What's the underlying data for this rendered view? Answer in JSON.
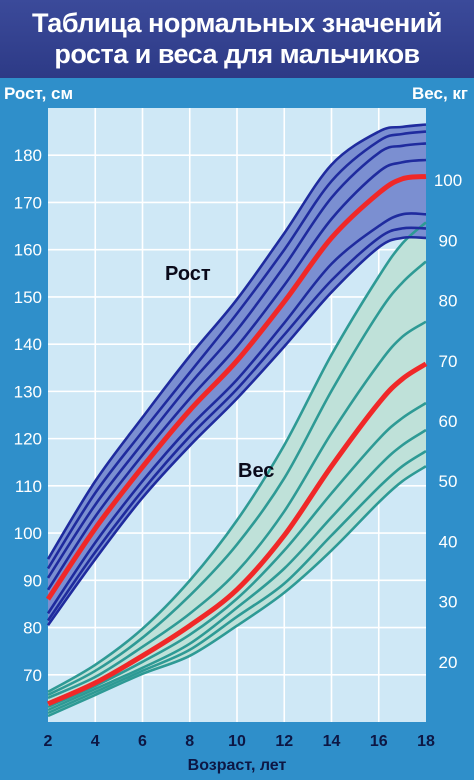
{
  "header": {
    "title_line1": "Таблица нормальных значений",
    "title_line2": "роста и веса для мальчиков"
  },
  "colors": {
    "background": "#2f8fca",
    "plot_area": "#cfe8f6",
    "header": "#323f8e",
    "height_band": "#7b8fd1",
    "height_lines": "#1f2b9e",
    "weight_band": "#bfe1d9",
    "weight_lines": "#2e9a95",
    "median": "#f02828"
  },
  "chart_data": {
    "type": "line",
    "title": "Таблица нормальных значений роста и веса для мальчиков",
    "xlabel": "Возраст, лет",
    "ylabel_left": "Рост, см",
    "ylabel_right": "Вес, кг",
    "xlim": [
      2,
      18
    ],
    "x_ticks": [
      2,
      4,
      6,
      8,
      10,
      12,
      14,
      16,
      18
    ],
    "y_left_ticks": [
      70,
      80,
      90,
      100,
      110,
      120,
      130,
      140,
      150,
      160,
      170,
      180
    ],
    "y_left_lim": [
      60,
      190
    ],
    "y_right_ticks": [
      20,
      30,
      40,
      50,
      60,
      70,
      80,
      90,
      100
    ],
    "y_right_lim": [
      10,
      112
    ],
    "grid": true,
    "x": [
      2,
      4,
      6,
      8,
      10,
      12,
      14,
      16,
      17,
      18
    ],
    "height_series": [
      {
        "values": [
          80.5,
          94.5,
          107.5,
          118.5,
          128.5,
          139.5,
          151.0,
          160.5,
          162.5,
          162.5
        ]
      },
      {
        "values": [
          81.5,
          96.0,
          109.0,
          120.5,
          130.5,
          142.0,
          153.5,
          162.5,
          164.5,
          164.5
        ]
      },
      {
        "values": [
          83.0,
          98.0,
          111.0,
          122.5,
          132.5,
          144.5,
          157.0,
          165.0,
          167.5,
          167.5
        ]
      },
      {
        "values": [
          86.0,
          101.0,
          114.0,
          126.0,
          136.5,
          149.0,
          162.5,
          172.0,
          175.0,
          175.5
        ],
        "median": true
      },
      {
        "values": [
          88.0,
          103.5,
          116.5,
          128.5,
          139.5,
          152.5,
          166.5,
          176.5,
          178.5,
          179.0
        ]
      },
      {
        "values": [
          90.5,
          106.0,
          119.0,
          131.5,
          143.0,
          156.5,
          171.0,
          180.5,
          182.0,
          182.5
        ]
      },
      {
        "values": [
          92.5,
          108.5,
          121.5,
          134.0,
          146.5,
          160.0,
          174.5,
          183.0,
          184.5,
          185.0
        ]
      },
      {
        "values": [
          94.5,
          111.0,
          124.5,
          137.5,
          149.5,
          163.5,
          178.0,
          185.0,
          186.0,
          186.5
        ]
      }
    ],
    "weight_series": [
      {
        "values": [
          11.0,
          14.5,
          18.0,
          21.0,
          26.0,
          31.5,
          38.5,
          46.5,
          50.0,
          52.5
        ]
      },
      {
        "values": [
          11.5,
          15.0,
          18.5,
          22.0,
          27.5,
          33.0,
          41.0,
          49.0,
          52.5,
          55.0
        ]
      },
      {
        "values": [
          12.0,
          15.5,
          19.0,
          23.0,
          29.0,
          35.5,
          44.0,
          52.5,
          56.0,
          58.5
        ]
      },
      {
        "values": [
          12.5,
          16.0,
          20.0,
          24.5,
          30.5,
          38.5,
          48.0,
          57.0,
          60.5,
          63.0
        ]
      },
      {
        "values": [
          13.0,
          16.5,
          21.0,
          26.0,
          32.0,
          41.0,
          52.5,
          63.0,
          67.0,
          69.5
        ],
        "median": true
      },
      {
        "values": [
          14.0,
          17.5,
          22.5,
          28.0,
          35.0,
          45.0,
          58.0,
          69.5,
          74.0,
          76.5
        ]
      },
      {
        "values": [
          14.5,
          18.5,
          24.0,
          31.0,
          39.5,
          50.5,
          65.0,
          78.0,
          83.0,
          86.5
        ]
      },
      {
        "values": [
          15.0,
          19.5,
          25.5,
          33.5,
          43.5,
          56.0,
          71.0,
          84.0,
          89.5,
          93.0
        ]
      }
    ],
    "annotations": {
      "height": "Рост",
      "weight": "Вес"
    }
  }
}
